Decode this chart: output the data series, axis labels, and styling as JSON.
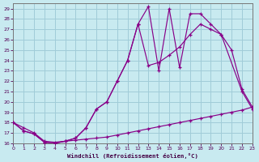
{
  "bg_color": "#c8eaf0",
  "grid_color": "#a0ccd8",
  "line_color": "#880088",
  "xlabel": "Windchill (Refroidissement éolien,°C)",
  "xlim": [
    0,
    23
  ],
  "ylim": [
    16,
    29.5
  ],
  "xticks": [
    0,
    1,
    2,
    3,
    4,
    5,
    6,
    7,
    8,
    9,
    10,
    11,
    12,
    13,
    14,
    15,
    16,
    17,
    18,
    19,
    20,
    21,
    22,
    23
  ],
  "yticks": [
    16,
    17,
    18,
    19,
    20,
    21,
    22,
    23,
    24,
    25,
    26,
    27,
    28,
    29
  ],
  "line1_x": [
    0,
    1,
    2,
    3,
    4,
    5,
    6,
    7,
    8,
    9,
    10,
    11,
    12,
    13,
    14,
    15,
    16,
    17,
    18,
    19,
    20,
    21,
    22,
    23
  ],
  "line1_y": [
    18.0,
    17.5,
    17.0,
    16.2,
    16.1,
    16.2,
    16.3,
    16.4,
    16.5,
    16.6,
    16.8,
    17.0,
    17.2,
    17.4,
    17.6,
    17.8,
    18.0,
    18.2,
    18.4,
    18.6,
    18.8,
    19.0,
    19.2,
    19.5
  ],
  "line2_x": [
    0,
    1,
    2,
    3,
    4,
    5,
    6,
    7,
    8,
    9,
    10,
    11,
    12,
    13,
    14,
    15,
    16,
    17,
    18,
    19,
    20,
    22,
    23
  ],
  "line2_y": [
    18.0,
    17.2,
    16.9,
    16.1,
    16.0,
    16.2,
    16.5,
    17.5,
    19.3,
    20.0,
    22.0,
    24.0,
    27.5,
    29.2,
    23.0,
    29.0,
    23.3,
    28.5,
    28.5,
    27.5,
    26.5,
    21.0,
    19.3
  ],
  "line3_x": [
    0,
    1,
    2,
    3,
    4,
    5,
    6,
    7,
    8,
    9,
    10,
    11,
    12,
    13,
    14,
    15,
    16,
    17,
    18,
    19,
    20,
    21,
    22,
    23
  ],
  "line3_y": [
    18.0,
    17.2,
    16.9,
    16.1,
    16.0,
    16.2,
    16.5,
    17.5,
    19.3,
    20.0,
    22.0,
    24.0,
    27.5,
    23.5,
    23.8,
    24.5,
    25.3,
    26.5,
    27.5,
    27.0,
    26.5,
    25.0,
    21.2,
    19.5
  ]
}
